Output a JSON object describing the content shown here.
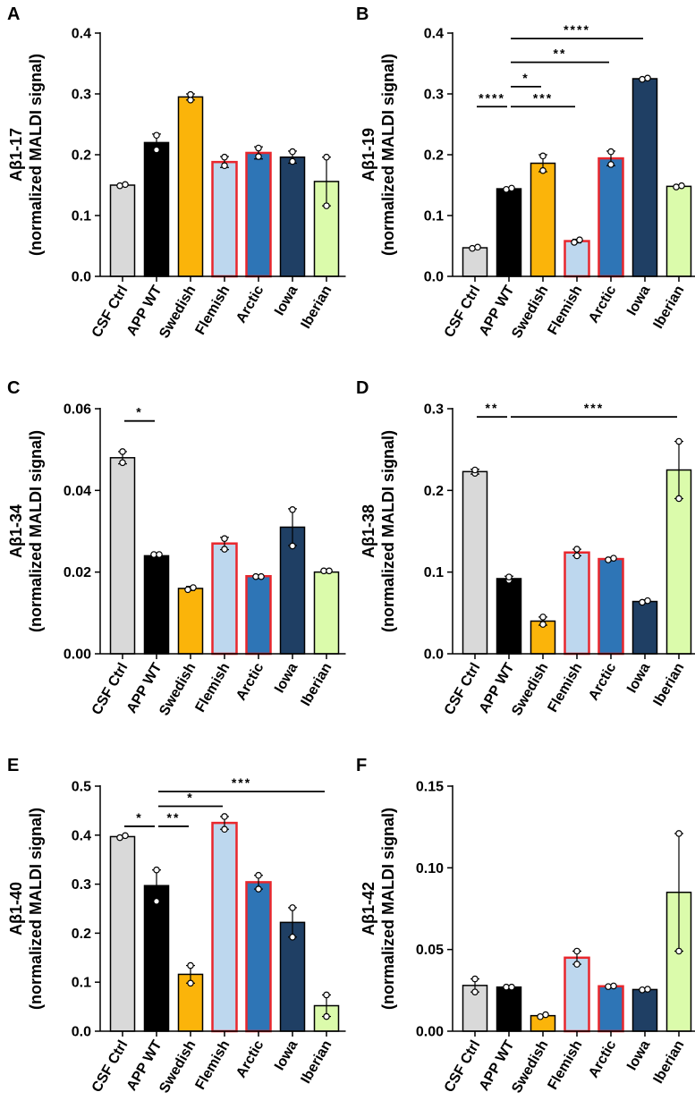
{
  "colors": {
    "CSF Ctrl": {
      "fill": "#d9d9d9",
      "stroke": "#000000"
    },
    "APP WT": {
      "fill": "#000000",
      "stroke": "#000000"
    },
    "Swedish": {
      "fill": "#fbb40a",
      "stroke": "#000000"
    },
    "Flemish": {
      "fill": "#bdd7ee",
      "stroke": "#e8272d"
    },
    "Arctic": {
      "fill": "#2e75b6",
      "stroke": "#e8272d"
    },
    "Iowa": {
      "fill": "#1f3f64",
      "stroke": "#000000"
    },
    "Iberian": {
      "fill": "#dbfbab",
      "stroke": "#000000"
    }
  },
  "chart_data": [
    {
      "panel": "A",
      "type": "bar",
      "ylabel_line1": "Aβ1-17",
      "ylabel_line2": "(normalized MALDI signal)",
      "ylim": [
        0,
        0.4
      ],
      "yticks": [
        "0.0",
        "0.1",
        "0.2",
        "0.3",
        "0.4"
      ],
      "categories": [
        "CSF Ctrl",
        "APP WT",
        "Swedish",
        "Flemish",
        "Arctic",
        "Iowa",
        "Iberian"
      ],
      "values": [
        0.15,
        0.22,
        0.295,
        0.188,
        0.203,
        0.196,
        0.156
      ],
      "errors": [
        0.002,
        0.014,
        0.005,
        0.009,
        0.01,
        0.01,
        0.04
      ],
      "points": [
        [
          0.149,
          0.151
        ],
        [
          0.208,
          0.232
        ],
        [
          0.29,
          0.299
        ],
        [
          0.182,
          0.196
        ],
        [
          0.197,
          0.211
        ],
        [
          0.189,
          0.205
        ],
        [
          0.116,
          0.196
        ]
      ],
      "brackets": []
    },
    {
      "panel": "B",
      "type": "bar",
      "ylabel_line1": "Aβ1-19",
      "ylabel_line2": "(normalized MALDI signal)",
      "ylim": [
        0,
        0.4
      ],
      "yticks": [
        "0.0",
        "0.1",
        "0.2",
        "0.3",
        "0.4"
      ],
      "categories": [
        "CSF Ctrl",
        "APP WT",
        "Swedish",
        "Flemish",
        "Arctic",
        "Iowa",
        "Iberian"
      ],
      "values": [
        0.047,
        0.144,
        0.186,
        0.058,
        0.194,
        0.325,
        0.148
      ],
      "errors": [
        0.002,
        0.002,
        0.014,
        0.003,
        0.012,
        0.002,
        0.002
      ],
      "points": [
        [
          0.046,
          0.048
        ],
        [
          0.143,
          0.145
        ],
        [
          0.174,
          0.198
        ],
        [
          0.056,
          0.06
        ],
        [
          0.184,
          0.205
        ],
        [
          0.324,
          0.326
        ],
        [
          0.147,
          0.149
        ]
      ],
      "brackets": [
        {
          "from": 1,
          "to": 5,
          "y": 0.391,
          "label": "****"
        },
        {
          "from": 1,
          "to": 4,
          "y": 0.352,
          "label": "**"
        },
        {
          "from": 1,
          "to": 2,
          "y": 0.312,
          "label": "*"
        },
        {
          "from": 0,
          "to": 1,
          "y": 0.279,
          "label": "****"
        },
        {
          "from": 1,
          "to": 3,
          "y": 0.279,
          "label": "***"
        }
      ]
    },
    {
      "panel": "C",
      "type": "bar",
      "ylabel_line1": "Aβ1-34",
      "ylabel_line2": "(normalized MALDI signal)",
      "ylim": [
        0,
        0.06
      ],
      "yticks": [
        "0.00",
        "0.02",
        "0.04",
        "0.06"
      ],
      "categories": [
        "CSF Ctrl",
        "APP WT",
        "Swedish",
        "Flemish",
        "Arctic",
        "Iowa",
        "Iberian"
      ],
      "values": [
        0.048,
        0.024,
        0.016,
        0.027,
        0.019,
        0.031,
        0.02
      ],
      "errors": [
        0.0015,
        0.0003,
        0.0005,
        0.0015,
        0.0002,
        0.0045,
        0.0002
      ],
      "points": [
        [
          0.0468,
          0.0495
        ],
        [
          0.0243,
          0.0243
        ],
        [
          0.0157,
          0.0162
        ],
        [
          0.0256,
          0.0282
        ],
        [
          0.0189,
          0.0189
        ],
        [
          0.0264,
          0.0353
        ],
        [
          0.0203,
          0.0203
        ]
      ],
      "brackets": [
        {
          "from": 0,
          "to": 1,
          "y": 0.057,
          "label": "*"
        }
      ]
    },
    {
      "panel": "D",
      "type": "bar",
      "ylabel_line1": "Aβ1-38",
      "ylabel_line2": "(normalized MALDI signal)",
      "ylim": [
        0,
        0.3
      ],
      "yticks": [
        "0.0",
        "0.1",
        "0.2",
        "0.3"
      ],
      "categories": [
        "CSF Ctrl",
        "APP WT",
        "Swedish",
        "Flemish",
        "Arctic",
        "Iowa",
        "Iberian"
      ],
      "values": [
        0.223,
        0.092,
        0.04,
        0.124,
        0.116,
        0.064,
        0.225
      ],
      "errors": [
        0.003,
        0.003,
        0.005,
        0.004,
        0.002,
        0.002,
        0.035
      ],
      "points": [
        [
          0.221,
          0.225
        ],
        [
          0.09,
          0.094
        ],
        [
          0.036,
          0.045
        ],
        [
          0.12,
          0.128
        ],
        [
          0.115,
          0.117
        ],
        [
          0.063,
          0.065
        ],
        [
          0.19,
          0.26
        ]
      ],
      "brackets": [
        {
          "from": 0,
          "to": 1,
          "y": 0.29,
          "label": "**"
        },
        {
          "from": 1,
          "to": 6,
          "y": 0.29,
          "label": "***"
        }
      ]
    },
    {
      "panel": "E",
      "type": "bar",
      "ylabel_line1": "Aβ1-40",
      "ylabel_line2": "(normalized MALDI signal)",
      "ylim": [
        0,
        0.5
      ],
      "yticks": [
        "0.0",
        "0.1",
        "0.2",
        "0.3",
        "0.4",
        "0.5"
      ],
      "categories": [
        "CSF Ctrl",
        "APP WT",
        "Swedish",
        "Flemish",
        "Arctic",
        "Iowa",
        "Iberian"
      ],
      "values": [
        0.397,
        0.297,
        0.116,
        0.425,
        0.304,
        0.222,
        0.052
      ],
      "errors": [
        0.002,
        0.032,
        0.018,
        0.013,
        0.014,
        0.03,
        0.022
      ],
      "points": [
        [
          0.395,
          0.399
        ],
        [
          0.265,
          0.329
        ],
        [
          0.098,
          0.134
        ],
        [
          0.412,
          0.438
        ],
        [
          0.29,
          0.318
        ],
        [
          0.192,
          0.252
        ],
        [
          0.03,
          0.074
        ]
      ],
      "brackets": [
        {
          "from": 1,
          "to": 6,
          "y": 0.489,
          "label": "***"
        },
        {
          "from": 1,
          "to": 3,
          "y": 0.459,
          "label": "*"
        },
        {
          "from": 0,
          "to": 1,
          "y": 0.418,
          "label": "*"
        },
        {
          "from": 1,
          "to": 2,
          "y": 0.418,
          "label": "**"
        }
      ]
    },
    {
      "panel": "F",
      "type": "bar",
      "ylabel_line1": "Aβ1-42",
      "ylabel_line2": "(normalized MALDI signal)",
      "ylim": [
        0,
        0.15
      ],
      "yticks": [
        "0.00",
        "0.05",
        "0.10",
        "0.15"
      ],
      "categories": [
        "CSF Ctrl",
        "APP WT",
        "Swedish",
        "Flemish",
        "Arctic",
        "Iowa",
        "Iberian"
      ],
      "values": [
        0.028,
        0.027,
        0.0095,
        0.045,
        0.0275,
        0.0255,
        0.085
      ],
      "errors": [
        0.004,
        0.0003,
        0.0006,
        0.004,
        0.0002,
        0.0002,
        0.036
      ],
      "points": [
        [
          0.024,
          0.032
        ],
        [
          0.027,
          0.027
        ],
        [
          0.0089,
          0.0101
        ],
        [
          0.041,
          0.049
        ],
        [
          0.0273,
          0.0277
        ],
        [
          0.0253,
          0.0257
        ],
        [
          0.049,
          0.121
        ]
      ],
      "brackets": []
    }
  ]
}
